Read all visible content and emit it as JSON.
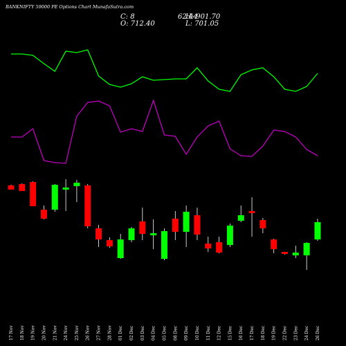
{
  "header": {
    "title": "BANKNIFTY 59000  PE Options  Chart MunafaSutra.com",
    "close_label": "C: 8",
    "high_label": "H: 901.70",
    "open_label": "O: 712.40",
    "low_label": "L: 701.05",
    "overprint": "62.44"
  },
  "colors": {
    "background": "#000000",
    "up": "#00ff00",
    "down": "#ff0000",
    "line_green": "#00ff00",
    "line_magenta": "#c000c0",
    "text": "#ffffff"
  },
  "chart_data": {
    "type": "candlestick",
    "categories": [
      "17 Nov",
      "18 Nov",
      "19 Nov",
      "20 Nov",
      "21 Nov",
      "24 Nov",
      "25 Nov",
      "26 Nov",
      "27 Nov",
      "28 Nov",
      "01 Dec",
      "02 Dec",
      "03 Dec",
      "04 Dec",
      "05 Dec",
      "08 Dec",
      "09 Dec",
      "10 Dec",
      "11 Dec",
      "12 Dec",
      "15 Dec",
      "16 Dec",
      "17 Dec",
      "18 Dec",
      "19 Dec",
      "22 Dec",
      "23 Dec",
      "24 Dec",
      "26 Dec"
    ],
    "series": [
      {
        "kind": "ohlc",
        "values": [
          {
            "x": "17 Nov",
            "o": 268,
            "h": 267,
            "l": 274,
            "c": 274
          },
          {
            "x": "18 Nov",
            "o": 266,
            "h": 265,
            "l": 276,
            "c": 276
          },
          {
            "x": "19 Nov",
            "o": 263,
            "h": 262,
            "l": 298,
            "c": 298
          },
          {
            "x": "20 Nov",
            "o": 303,
            "h": 297,
            "l": 317,
            "c": 316
          },
          {
            "x": "21 Nov",
            "o": 303,
            "h": 266,
            "l": 306,
            "c": 267
          },
          {
            "x": "24 Nov",
            "o": 274,
            "h": 259,
            "l": 305,
            "c": 271
          },
          {
            "x": "25 Nov",
            "o": 269,
            "h": 260,
            "l": 292,
            "c": 264
          },
          {
            "x": "26 Nov",
            "o": 268,
            "h": 266,
            "l": 330,
            "c": 327
          },
          {
            "x": "27 Nov",
            "o": 330,
            "h": 325,
            "l": 357,
            "c": 346
          },
          {
            "x": "28 Nov",
            "o": 347,
            "h": 343,
            "l": 358,
            "c": 356
          },
          {
            "x": "01 Dec",
            "o": 373,
            "h": 338,
            "l": 374,
            "c": 346
          },
          {
            "x": "02 Dec",
            "o": 347,
            "h": 328,
            "l": 350,
            "c": 330
          },
          {
            "x": "03 Dec",
            "o": 320,
            "h": 300,
            "l": 347,
            "c": 338
          },
          {
            "x": "04 Dec",
            "o": 340,
            "h": 317,
            "l": 360,
            "c": 337
          },
          {
            "x": "05 Dec",
            "o": 374,
            "h": 330,
            "l": 376,
            "c": 334
          },
          {
            "x": "08 Dec",
            "o": 316,
            "h": 305,
            "l": 347,
            "c": 335
          },
          {
            "x": "09 Dec",
            "o": 335,
            "h": 297,
            "l": 357,
            "c": 306
          },
          {
            "x": "10 Dec",
            "o": 311,
            "h": 300,
            "l": 347,
            "c": 339
          },
          {
            "x": "11 Dec",
            "o": 352,
            "h": 342,
            "l": 364,
            "c": 359
          },
          {
            "x": "12 Dec",
            "o": 350,
            "h": 342,
            "l": 366,
            "c": 365
          },
          {
            "x": "15 Dec",
            "o": 354,
            "h": 323,
            "l": 357,
            "c": 326
          },
          {
            "x": "16 Dec",
            "o": 319,
            "h": 297,
            "l": 321,
            "c": 311
          },
          {
            "x": "17 Dec",
            "o": 305,
            "h": 285,
            "l": 342,
            "c": 308
          },
          {
            "x": "18 Dec",
            "o": 318,
            "h": 315,
            "l": 337,
            "c": 330
          },
          {
            "x": "19 Dec",
            "o": 346,
            "h": 345,
            "l": 366,
            "c": 360
          },
          {
            "x": "22 Dec",
            "o": 364,
            "h": 364,
            "l": 368,
            "c": 367
          },
          {
            "x": "23 Dec",
            "o": 369,
            "h": 355,
            "l": 373,
            "c": 365
          },
          {
            "x": "24 Dec",
            "o": 369,
            "h": 350,
            "l": 390,
            "c": 351
          },
          {
            "x": "26 Dec",
            "o": 346,
            "h": 316,
            "l": 348,
            "c": 321
          }
        ]
      },
      {
        "kind": "line",
        "color": "#00ff00",
        "values": [
          78,
          78,
          80,
          92,
          103,
          74,
          76,
          72,
          110,
          122,
          126,
          121,
          111,
          116,
          115,
          114,
          114,
          98,
          117,
          129,
          132,
          108,
          101,
          98,
          111,
          129,
          132,
          125,
          106
        ]
      },
      {
        "kind": "line",
        "color": "#c000c0",
        "values": [
          198,
          198,
          186,
          232,
          235,
          236,
          168,
          148,
          146,
          153,
          191,
          186,
          190,
          145,
          195,
          197,
          223,
          198,
          182,
          175,
          215,
          225,
          226,
          211,
          188,
          190,
          198,
          216,
          225
        ]
      }
    ],
    "ylim_note": "values are read on an inverted vertical scale (larger = lower on screen)"
  }
}
